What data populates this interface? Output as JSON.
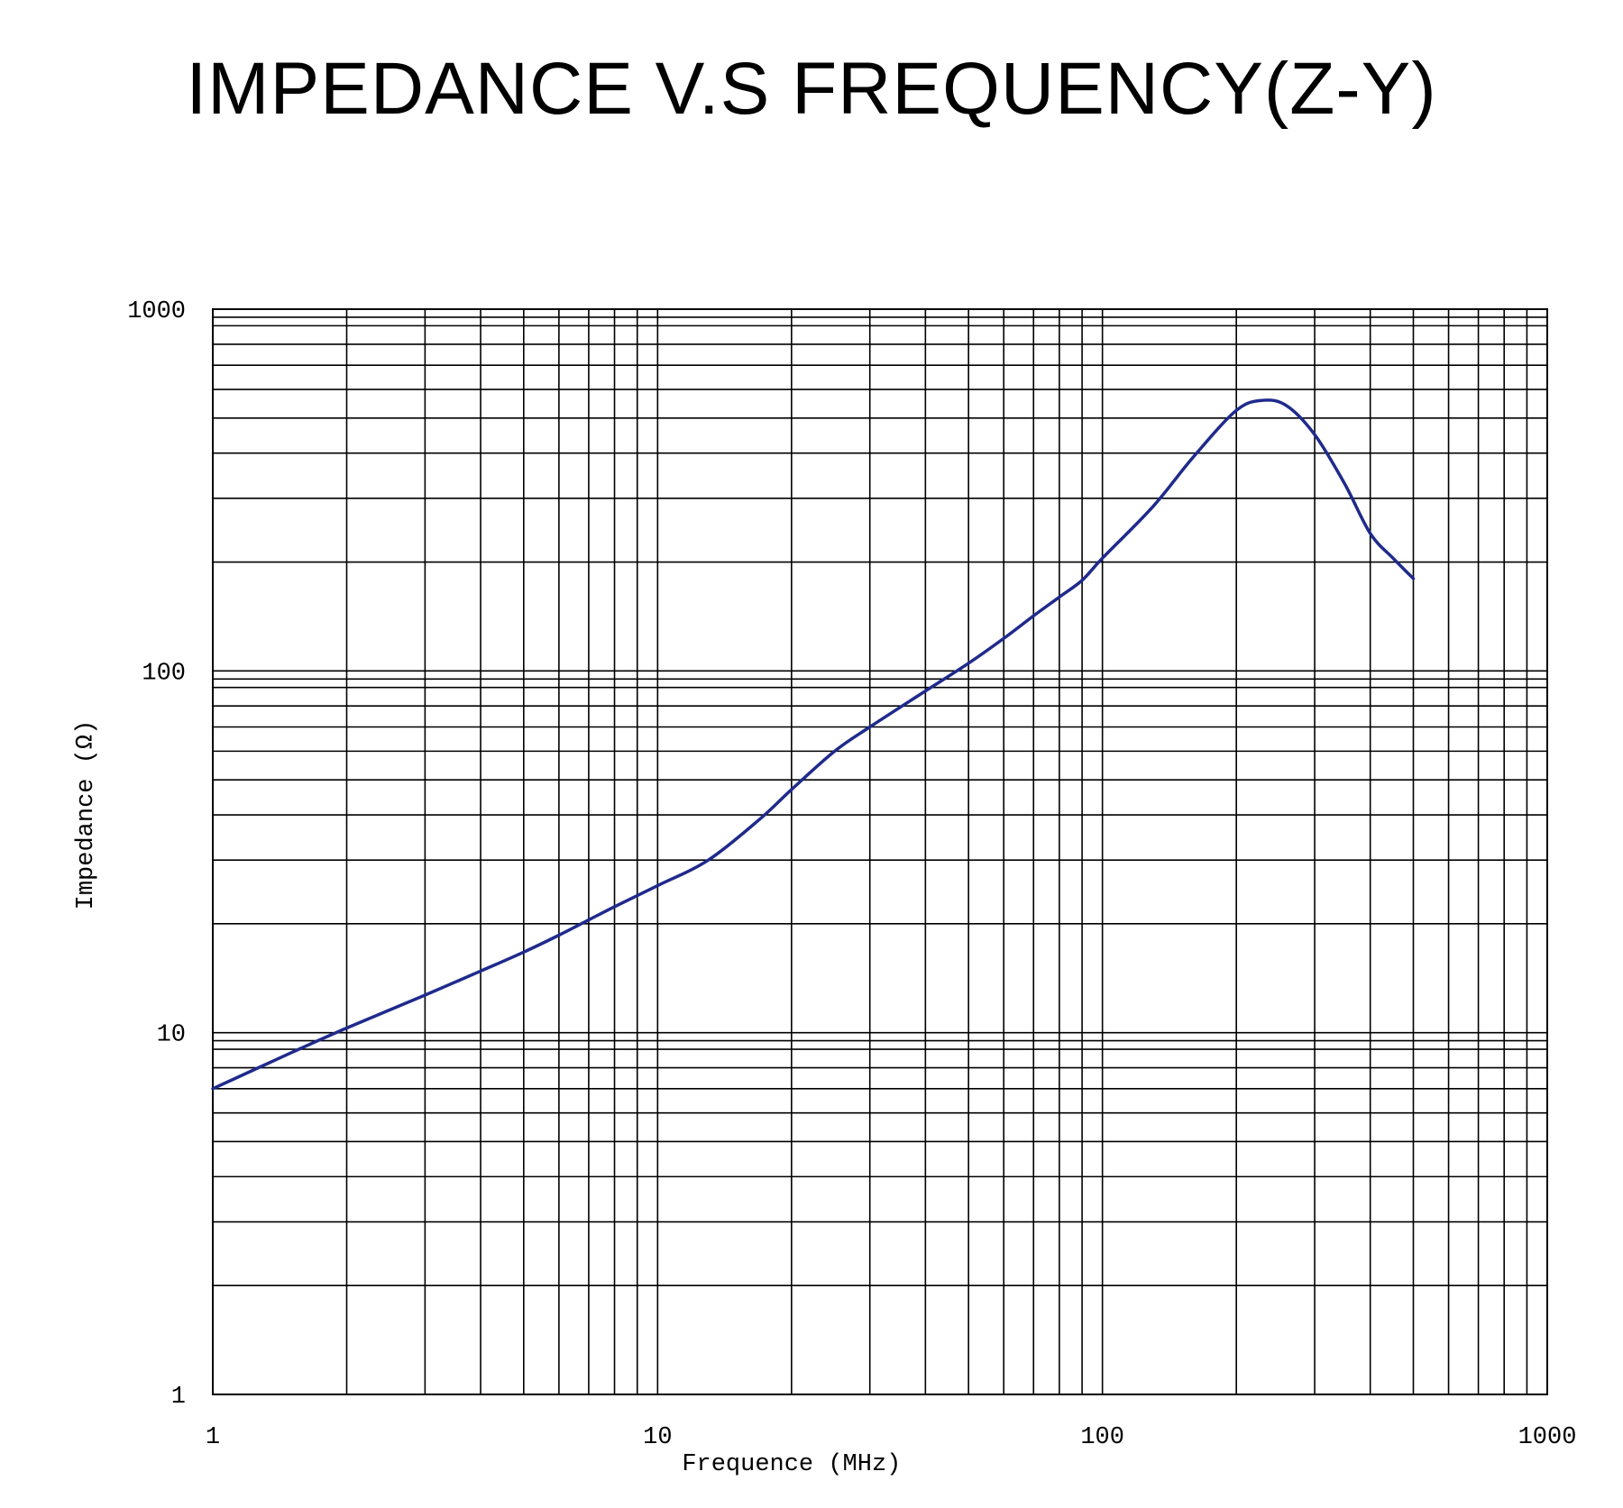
{
  "chart_data": {
    "type": "line",
    "title": "IMPEDANCE V.S FREQUENCY(Z-Y)",
    "xlabel": "Frequence (MHz)",
    "ylabel": "Impedance (Ω)",
    "xscale": "log",
    "yscale": "log",
    "xlim": [
      1,
      1000
    ],
    "ylim": [
      1,
      1000
    ],
    "grid": true,
    "x_ticks": [
      "1",
      "10",
      "100",
      "1000"
    ],
    "y_ticks": [
      "1",
      "10",
      "100",
      "1000"
    ],
    "line_color": "#1f2a8c",
    "series": [
      {
        "x": [
          1,
          1.5,
          2,
          3,
          4,
          5,
          6,
          7,
          8,
          10,
          13,
          17,
          20,
          25,
          30,
          40,
          50,
          60,
          70,
          80,
          90,
          100,
          130,
          160,
          200,
          230,
          260,
          300,
          350,
          400,
          450,
          500
        ],
        "values": [
          7,
          8.8,
          10.3,
          12.7,
          14.8,
          16.7,
          18.6,
          20.5,
          22.3,
          25.5,
          30,
          39,
          47,
          60,
          70,
          88,
          105,
          123,
          142,
          160,
          178,
          205,
          285,
          390,
          525,
          560,
          540,
          450,
          330,
          240,
          205,
          180
        ]
      }
    ]
  }
}
